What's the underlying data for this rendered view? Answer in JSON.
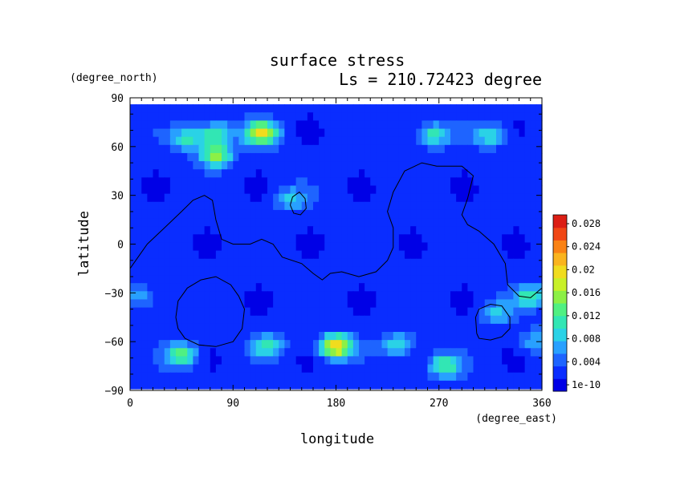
{
  "chart_data": {
    "type": "heatmap",
    "title": "surface stress",
    "subtitle": "Ls = 210.72423 degree",
    "xlabel": "longitude",
    "ylabel": "latitude",
    "xunit": "(degree_east)",
    "yunit": "(degree_north)",
    "xlim": [
      0,
      360
    ],
    "ylim": [
      -90,
      90
    ],
    "xticks": [
      "0",
      "90",
      "180",
      "270",
      "360"
    ],
    "yticks": [
      "90",
      "60",
      "30",
      "0",
      "-30",
      "-60",
      "-90"
    ],
    "colorbar": {
      "labels": [
        "1e-10",
        "0.004",
        "0.008",
        "0.012",
        "0.016",
        "0.02",
        "0.024",
        "0.028"
      ],
      "colors": [
        "#0000e6",
        "#0a2dff",
        "#1e64ff",
        "#28a0ff",
        "#2ad2e6",
        "#32e6b4",
        "#50f082",
        "#8cf046",
        "#c8f028",
        "#f0dc1e",
        "#fab41e",
        "#fa8214",
        "#f04614",
        "#dc1e14"
      ]
    },
    "background_value": 0.003,
    "features": [
      {
        "lon": 115,
        "lat": 68,
        "value": 0.02
      },
      {
        "lon": 75,
        "lat": 68,
        "value": 0.013
      },
      {
        "lon": 50,
        "lat": 65,
        "value": 0.012
      },
      {
        "lon": 75,
        "lat": 55,
        "value": 0.016
      },
      {
        "lon": 180,
        "lat": -63,
        "value": 0.022
      },
      {
        "lon": 45,
        "lat": -68,
        "value": 0.014
      },
      {
        "lon": 120,
        "lat": -63,
        "value": 0.011
      },
      {
        "lon": 275,
        "lat": -75,
        "value": 0.013
      },
      {
        "lon": 315,
        "lat": 67,
        "value": 0.011
      },
      {
        "lon": 265,
        "lat": 67,
        "value": 0.012
      },
      {
        "lon": 350,
        "lat": -32,
        "value": 0.012
      },
      {
        "lon": 235,
        "lat": -62,
        "value": 0.011
      },
      {
        "lon": 320,
        "lat": -42,
        "value": 0.009
      },
      {
        "lon": 140,
        "lat": 28,
        "value": 0.009
      },
      {
        "lon": 10,
        "lat": -32,
        "value": 0.008
      },
      {
        "lon": 355,
        "lat": -60,
        "value": 0.009
      }
    ],
    "contours": [
      {
        "name": "tharsis-boundary",
        "points": [
          [
            0,
            -15
          ],
          [
            15,
            0
          ],
          [
            30,
            10
          ],
          [
            45,
            20
          ],
          [
            55,
            27
          ],
          [
            65,
            30
          ],
          [
            72,
            27
          ],
          [
            75,
            15
          ],
          [
            80,
            3
          ],
          [
            90,
            0
          ],
          [
            105,
            0
          ],
          [
            115,
            3
          ],
          [
            125,
            0
          ],
          [
            133,
            -8
          ],
          [
            150,
            -12
          ],
          [
            160,
            -18
          ],
          [
            168,
            -22
          ],
          [
            175,
            -18
          ],
          [
            185,
            -17
          ],
          [
            200,
            -20
          ],
          [
            215,
            -17
          ],
          [
            225,
            -10
          ],
          [
            230,
            -2
          ],
          [
            230,
            10
          ],
          [
            225,
            20
          ],
          [
            230,
            32
          ],
          [
            240,
            45
          ],
          [
            255,
            50
          ],
          [
            268,
            48
          ],
          [
            290,
            48
          ],
          [
            300,
            42
          ],
          [
            295,
            28
          ],
          [
            290,
            18
          ],
          [
            295,
            12
          ],
          [
            305,
            8
          ],
          [
            318,
            0
          ],
          [
            328,
            -12
          ],
          [
            330,
            -25
          ],
          [
            340,
            -32
          ],
          [
            350,
            -33
          ],
          [
            360,
            -27
          ]
        ]
      },
      {
        "name": "crater-west",
        "points": [
          [
            40,
            -45
          ],
          [
            42,
            -35
          ],
          [
            50,
            -27
          ],
          [
            62,
            -22
          ],
          [
            75,
            -20
          ],
          [
            88,
            -25
          ],
          [
            95,
            -32
          ],
          [
            100,
            -40
          ],
          [
            98,
            -52
          ],
          [
            90,
            -60
          ],
          [
            75,
            -63
          ],
          [
            60,
            -62
          ],
          [
            48,
            -58
          ],
          [
            42,
            -52
          ],
          [
            40,
            -45
          ]
        ]
      },
      {
        "name": "crater-east",
        "points": [
          [
            303,
            -55
          ],
          [
            302,
            -45
          ],
          [
            305,
            -40
          ],
          [
            315,
            -37
          ],
          [
            325,
            -38
          ],
          [
            332,
            -45
          ],
          [
            332,
            -52
          ],
          [
            325,
            -57
          ],
          [
            315,
            -59
          ],
          [
            305,
            -58
          ],
          [
            303,
            -55
          ]
        ]
      },
      {
        "name": "small-contour",
        "points": [
          [
            140,
            24
          ],
          [
            142,
            29
          ],
          [
            148,
            32
          ],
          [
            153,
            28
          ],
          [
            154,
            22
          ],
          [
            149,
            18
          ],
          [
            143,
            19
          ],
          [
            140,
            24
          ]
        ]
      }
    ]
  }
}
